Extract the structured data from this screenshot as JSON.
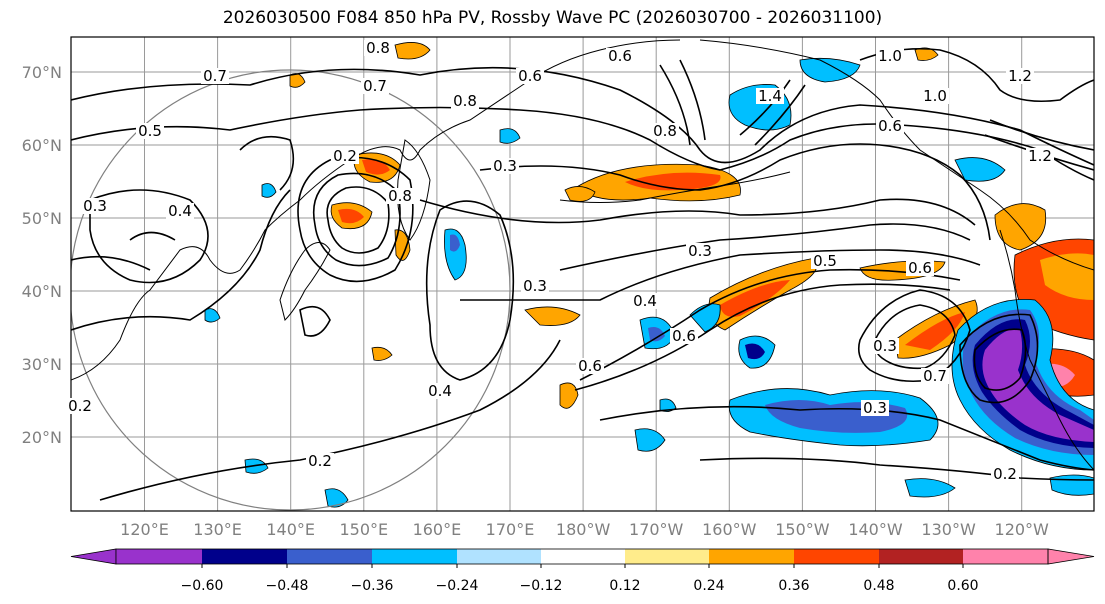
{
  "title": "2026030500 F084 850 hPa PV, Rossby Wave PC (2026030700 - 2026031100)",
  "map": {
    "lat_labels": [
      "70°N",
      "60°N",
      "50°N",
      "40°N",
      "30°N",
      "20°N"
    ],
    "lon_labels": [
      "120°E",
      "130°E",
      "140°E",
      "150°E",
      "160°E",
      "170°E",
      "180°W",
      "170°W",
      "160°W",
      "150°W",
      "140°W",
      "130°W",
      "120°W"
    ],
    "contour_labels": [
      "0.8",
      "0.6",
      "0.8",
      "1.0",
      "1.0",
      "1.2",
      "0.7",
      "0.6",
      "0.8",
      "0.5",
      "0.3",
      "0.4",
      "0.2",
      "0.3",
      "0.5",
      "0.3",
      "0.6",
      "0.4",
      "0.6",
      "0.6",
      "0.3",
      "0.4",
      "0.7",
      "0.3",
      "0.3",
      "0.2",
      "0.2",
      "0.2",
      "0.8",
      "0.7",
      "0.6",
      "1.4",
      "1.2"
    ]
  },
  "colorbar": {
    "colors": [
      "#9932CC",
      "#00008B",
      "#3A5FCD",
      "#00BFFF",
      "#B0E2FF",
      "#FFFFFF",
      "#FFEC8B",
      "#FFA500",
      "#FF4500",
      "#B22222",
      "#FF82AB"
    ],
    "ticks": [
      "−0.60",
      "−0.48",
      "−0.36",
      "−0.24",
      "−0.12",
      "0.12",
      "0.24",
      "0.36",
      "0.48",
      "0.60"
    ]
  }
}
